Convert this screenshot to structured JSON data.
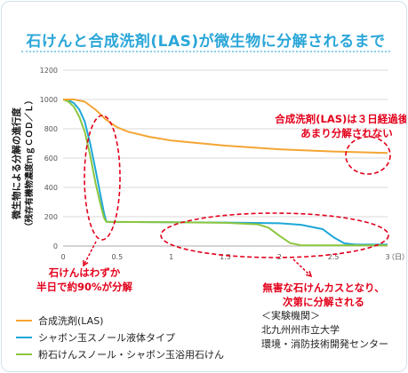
{
  "title": "石けんと合成洗剤(LAS)が微生物に分解されるまで",
  "source": {
    "heading": "＜実験機関＞",
    "line1": "北九州州市立大学",
    "line2": "環境・消防技術開発センター"
  },
  "colors": {
    "title": "#2aa6d8",
    "annotation": "#e3001b",
    "las": "#f4a533",
    "liquid": "#1da7d8",
    "powder": "#8cc63f"
  },
  "chart_data": {
    "type": "line",
    "title": "",
    "xlabel": "",
    "x_unit": "（日）",
    "ylabel": "微生物による分解の進行度",
    "ylabel_sub": "（残存有機物濃度ｍｇＣＯＤ／Ｌ）",
    "xlim": [
      0,
      3
    ],
    "ylim": [
      0,
      1200
    ],
    "x_ticks": [
      "0",
      "0.5",
      "1",
      "1.5",
      "2",
      "2.5",
      "3"
    ],
    "y_ticks": [
      "0",
      "200",
      "400",
      "600",
      "800",
      "1000",
      "1200"
    ],
    "grid": "horizontal",
    "legend_position": "bottom-left",
    "series": [
      {
        "name": "合成洗剤(LAS)",
        "color": "#f4a533",
        "points": [
          [
            0,
            1000
          ],
          [
            0.1,
            1000
          ],
          [
            0.2,
            985
          ],
          [
            0.3,
            930
          ],
          [
            0.4,
            860
          ],
          [
            0.5,
            810
          ],
          [
            0.6,
            780
          ],
          [
            0.8,
            745
          ],
          [
            1.0,
            720
          ],
          [
            1.5,
            685
          ],
          [
            2.0,
            660
          ],
          [
            2.5,
            645
          ],
          [
            3.0,
            635
          ]
        ]
      },
      {
        "name": "シャボン玉スノール液体タイプ",
        "color": "#1da7d8",
        "points": [
          [
            0,
            1000
          ],
          [
            0.05,
            995
          ],
          [
            0.1,
            975
          ],
          [
            0.15,
            930
          ],
          [
            0.2,
            850
          ],
          [
            0.25,
            700
          ],
          [
            0.3,
            520
          ],
          [
            0.35,
            330
          ],
          [
            0.38,
            220
          ],
          [
            0.4,
            165
          ],
          [
            1.0,
            162
          ],
          [
            1.5,
            160
          ],
          [
            2.0,
            155
          ],
          [
            2.2,
            145
          ],
          [
            2.4,
            115
          ],
          [
            2.5,
            60
          ],
          [
            2.6,
            18
          ],
          [
            2.7,
            10
          ],
          [
            3.0,
            10
          ]
        ]
      },
      {
        "name": "粉石けんスノール・シャボン玉浴用石けん",
        "color": "#8cc63f",
        "points": [
          [
            0,
            1000
          ],
          [
            0.05,
            985
          ],
          [
            0.1,
            950
          ],
          [
            0.15,
            880
          ],
          [
            0.2,
            780
          ],
          [
            0.25,
            620
          ],
          [
            0.3,
            430
          ],
          [
            0.35,
            270
          ],
          [
            0.38,
            190
          ],
          [
            0.4,
            165
          ],
          [
            1.0,
            162
          ],
          [
            1.5,
            158
          ],
          [
            1.8,
            148
          ],
          [
            1.9,
            125
          ],
          [
            2.0,
            70
          ],
          [
            2.1,
            20
          ],
          [
            2.2,
            5
          ],
          [
            3.0,
            5
          ]
        ]
      }
    ],
    "annotations": [
      {
        "text": "合成洗剤(LAS)は３日経過後も",
        "text2": "あまり分解されない"
      },
      {
        "text": "石けんはわずか",
        "text2": "半日で約90%が分解"
      },
      {
        "text": "無害な石けんカスとなり、",
        "text2": "次第に分解される"
      }
    ]
  }
}
